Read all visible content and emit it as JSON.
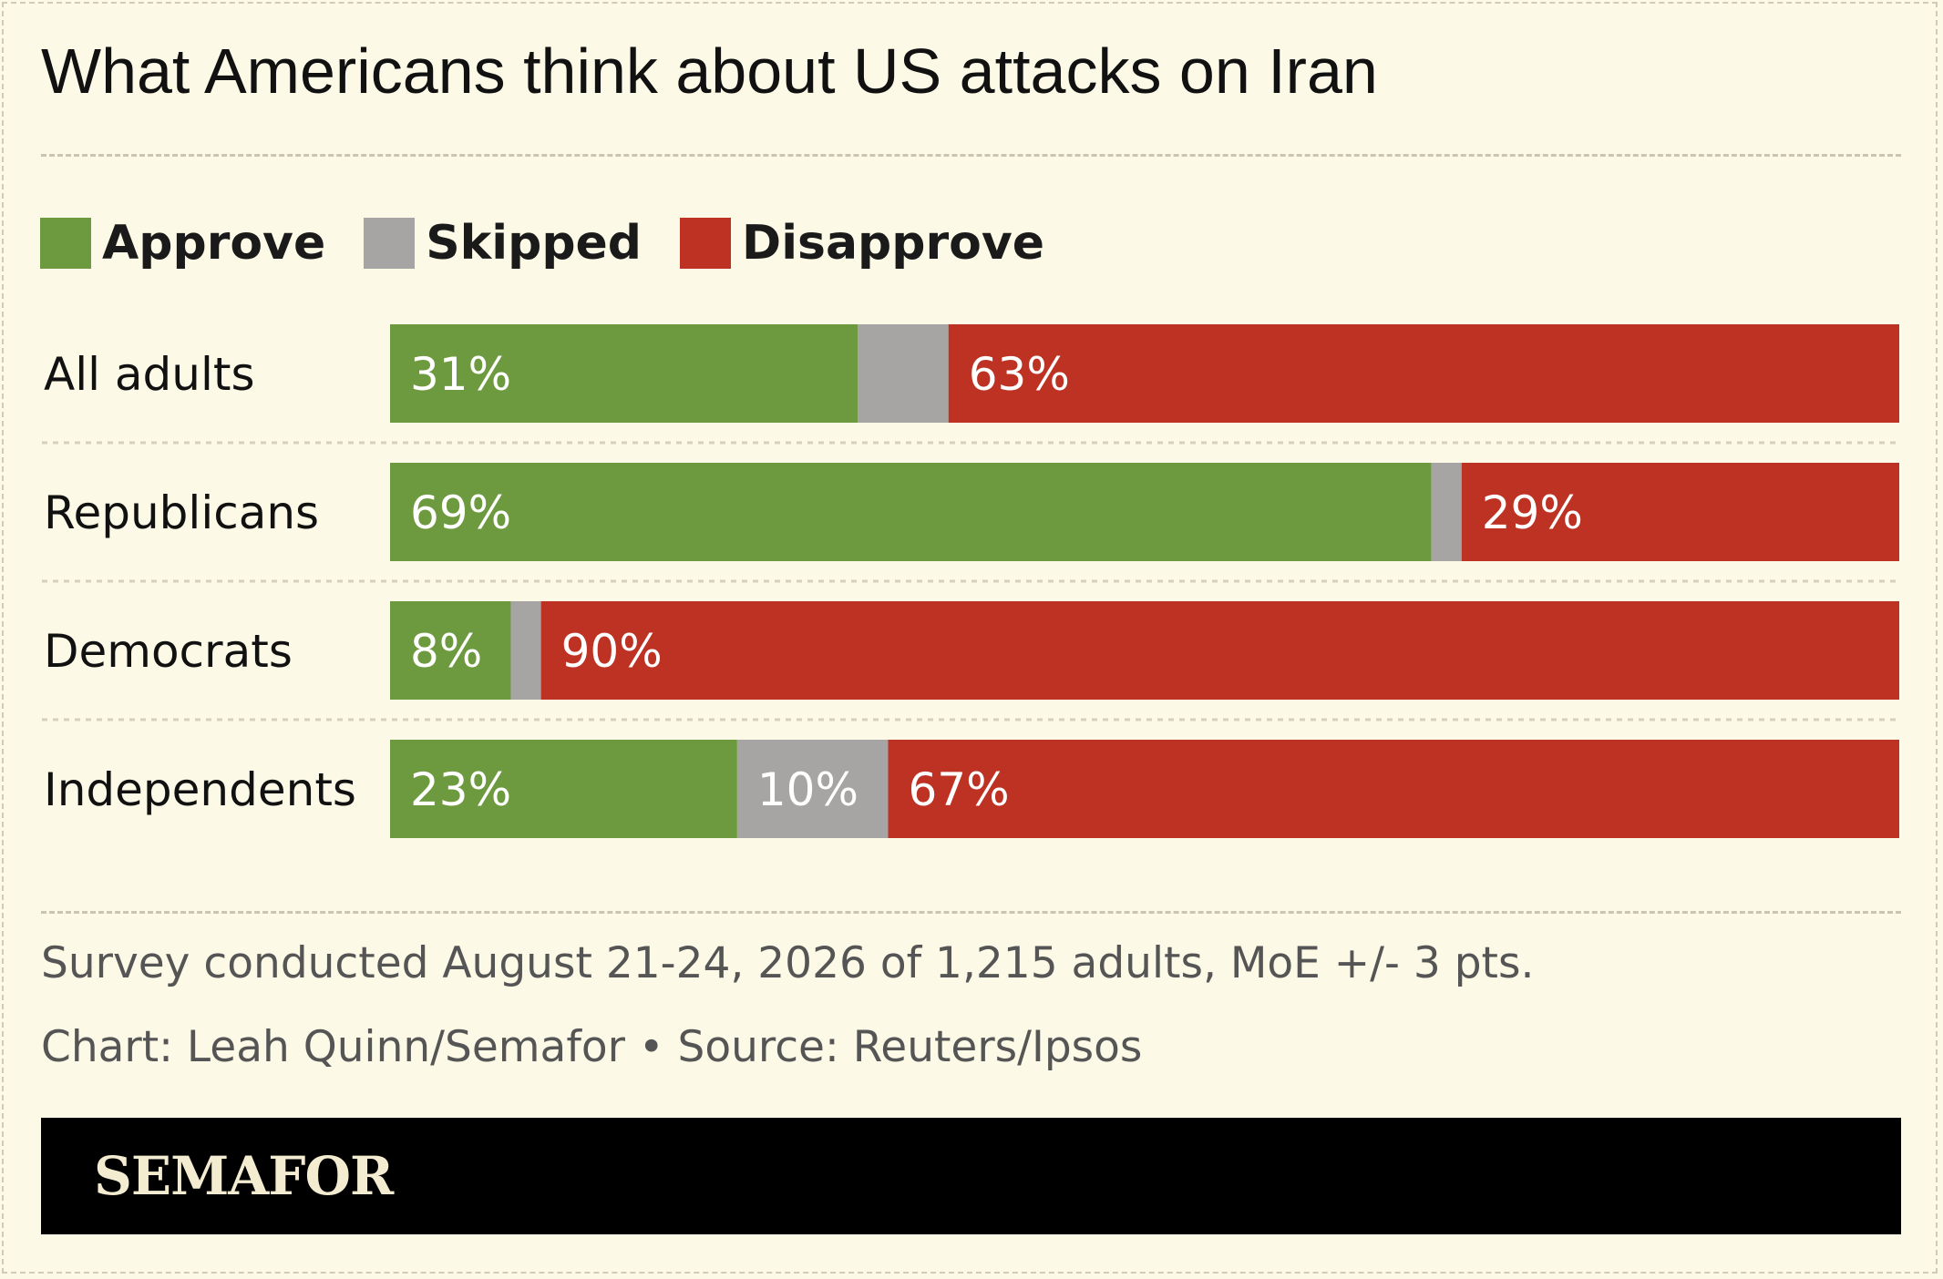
{
  "header": {
    "title": "What Americans think about US attacks on Iran"
  },
  "colors": {
    "background": "#fcf9e6",
    "approve": "#6e9a3f",
    "skipped": "#a6a5a3",
    "disapprove": "#bd3222",
    "footer": "#000000",
    "brand_text": "#f3ecd0"
  },
  "chart_data": {
    "type": "bar",
    "orientation": "horizontal",
    "stacked": true,
    "title": "What Americans think about US attacks on Iran",
    "categories": [
      "All adults",
      "Republicans",
      "Democrats",
      "Independents"
    ],
    "series": [
      {
        "name": "Approve",
        "color": "#6e9a3f",
        "values": [
          31,
          69,
          8,
          23
        ],
        "labels": [
          "31%",
          "69%",
          "8%",
          "23%"
        ]
      },
      {
        "name": "Skipped",
        "color": "#a6a5a3",
        "values": [
          6,
          2,
          2,
          10
        ],
        "labels": [
          "",
          "",
          "",
          "10%"
        ]
      },
      {
        "name": "Disapprove",
        "color": "#bd3222",
        "values": [
          63,
          29,
          90,
          67
        ],
        "labels": [
          "63%",
          "29%",
          "90%",
          "67%"
        ]
      }
    ],
    "xlim": [
      0,
      100
    ],
    "legend_position": "top-left",
    "grid": false
  },
  "notes": {
    "survey": "Survey conducted August 21-24, 2026 of 1,215 adults, MoE +/- 3 pts.",
    "credit": "Chart: Leah Quinn/Semafor • Source: Reuters/Ipsos"
  },
  "footer": {
    "brand": "SEMAFOR"
  }
}
